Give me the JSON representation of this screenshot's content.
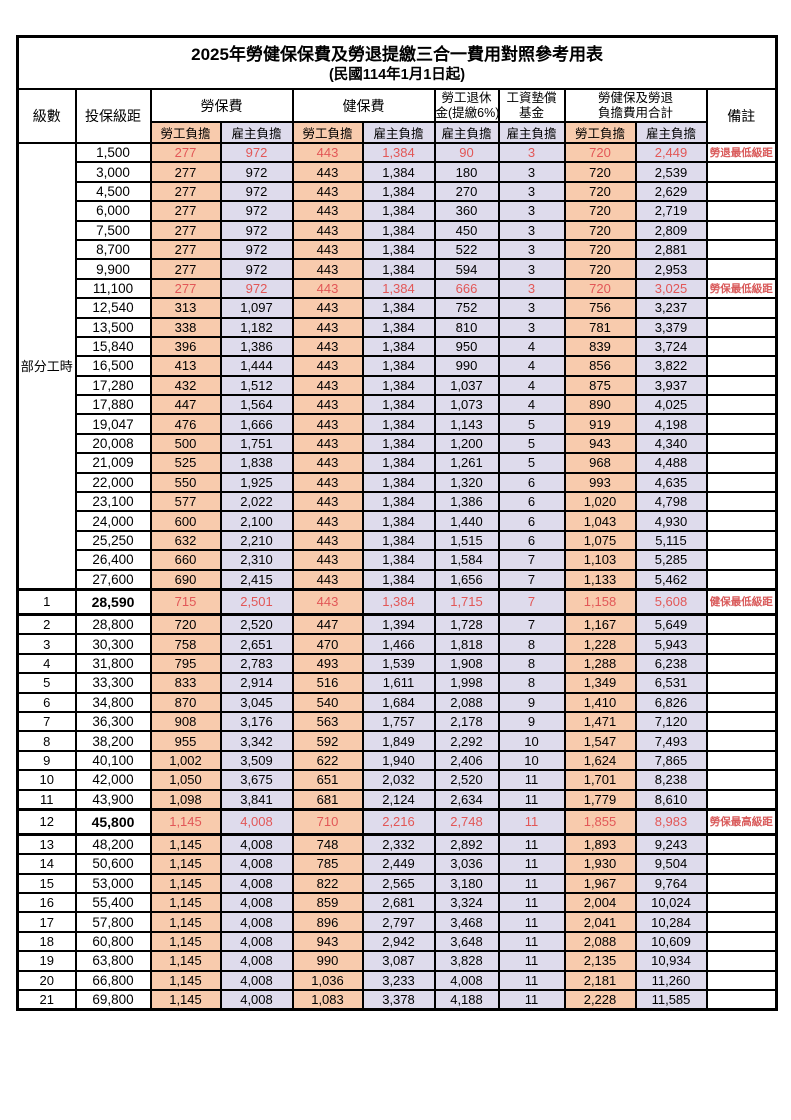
{
  "title": "2025年勞健保保費及勞退提繳三合一費用對照參考用表",
  "subtitle": "(民國114年1月1日起)",
  "part_time_label": "部分工時",
  "columns": {
    "level": "級數",
    "salary": "投保級距",
    "labor_ins": "勞保費",
    "health_ins": "健保費",
    "pension_line1": "勞工退休",
    "pension_line2": "金(提繳6%)",
    "wage_fund_line1": "工資墊償",
    "wage_fund_line2": "基金",
    "total_line1": "勞健保及勞退",
    "total_line2": "負擔費用合計",
    "remark": "備註",
    "employee": "勞工負擔",
    "employer": "雇主負擔"
  },
  "colors": {
    "employee_bg": "#F8CBAD",
    "employer_bg": "#DEDBEC",
    "highlight_red": "#E25757",
    "border": "#000000"
  },
  "rows": [
    {
      "level": "",
      "salary": "1,500",
      "values": [
        "277",
        "972",
        "443",
        "1,384",
        "90",
        "3",
        "720",
        "2,449"
      ],
      "remark": "勞退最低級距",
      "red": true,
      "heavy": false
    },
    {
      "level": "",
      "salary": "3,000",
      "values": [
        "277",
        "972",
        "443",
        "1,384",
        "180",
        "3",
        "720",
        "2,539"
      ],
      "remark": "",
      "red": false,
      "heavy": false
    },
    {
      "level": "",
      "salary": "4,500",
      "values": [
        "277",
        "972",
        "443",
        "1,384",
        "270",
        "3",
        "720",
        "2,629"
      ],
      "remark": "",
      "red": false,
      "heavy": false
    },
    {
      "level": "",
      "salary": "6,000",
      "values": [
        "277",
        "972",
        "443",
        "1,384",
        "360",
        "3",
        "720",
        "2,719"
      ],
      "remark": "",
      "red": false,
      "heavy": false
    },
    {
      "level": "",
      "salary": "7,500",
      "values": [
        "277",
        "972",
        "443",
        "1,384",
        "450",
        "3",
        "720",
        "2,809"
      ],
      "remark": "",
      "red": false,
      "heavy": false
    },
    {
      "level": "",
      "salary": "8,700",
      "values": [
        "277",
        "972",
        "443",
        "1,384",
        "522",
        "3",
        "720",
        "2,881"
      ],
      "remark": "",
      "red": false,
      "heavy": false
    },
    {
      "level": "",
      "salary": "9,900",
      "values": [
        "277",
        "972",
        "443",
        "1,384",
        "594",
        "3",
        "720",
        "2,953"
      ],
      "remark": "",
      "red": false,
      "heavy": false
    },
    {
      "level": "",
      "salary": "11,100",
      "values": [
        "277",
        "972",
        "443",
        "1,384",
        "666",
        "3",
        "720",
        "3,025"
      ],
      "remark": "勞保最低級距",
      "red": true,
      "heavy": false
    },
    {
      "level": "",
      "salary": "12,540",
      "values": [
        "313",
        "1,097",
        "443",
        "1,384",
        "752",
        "3",
        "756",
        "3,237"
      ],
      "remark": "",
      "red": false,
      "heavy": false
    },
    {
      "level": "",
      "salary": "13,500",
      "values": [
        "338",
        "1,182",
        "443",
        "1,384",
        "810",
        "3",
        "781",
        "3,379"
      ],
      "remark": "",
      "red": false,
      "heavy": false
    },
    {
      "level": "",
      "salary": "15,840",
      "values": [
        "396",
        "1,386",
        "443",
        "1,384",
        "950",
        "4",
        "839",
        "3,724"
      ],
      "remark": "",
      "red": false,
      "heavy": false
    },
    {
      "level": "",
      "salary": "16,500",
      "values": [
        "413",
        "1,444",
        "443",
        "1,384",
        "990",
        "4",
        "856",
        "3,822"
      ],
      "remark": "",
      "red": false,
      "heavy": false
    },
    {
      "level": "",
      "salary": "17,280",
      "values": [
        "432",
        "1,512",
        "443",
        "1,384",
        "1,037",
        "4",
        "875",
        "3,937"
      ],
      "remark": "",
      "red": false,
      "heavy": false
    },
    {
      "level": "",
      "salary": "17,880",
      "values": [
        "447",
        "1,564",
        "443",
        "1,384",
        "1,073",
        "4",
        "890",
        "4,025"
      ],
      "remark": "",
      "red": false,
      "heavy": false
    },
    {
      "level": "",
      "salary": "19,047",
      "values": [
        "476",
        "1,666",
        "443",
        "1,384",
        "1,143",
        "5",
        "919",
        "4,198"
      ],
      "remark": "",
      "red": false,
      "heavy": false
    },
    {
      "level": "",
      "salary": "20,008",
      "values": [
        "500",
        "1,751",
        "443",
        "1,384",
        "1,200",
        "5",
        "943",
        "4,340"
      ],
      "remark": "",
      "red": false,
      "heavy": false
    },
    {
      "level": "",
      "salary": "21,009",
      "values": [
        "525",
        "1,838",
        "443",
        "1,384",
        "1,261",
        "5",
        "968",
        "4,488"
      ],
      "remark": "",
      "red": false,
      "heavy": false
    },
    {
      "level": "",
      "salary": "22,000",
      "values": [
        "550",
        "1,925",
        "443",
        "1,384",
        "1,320",
        "6",
        "993",
        "4,635"
      ],
      "remark": "",
      "red": false,
      "heavy": false
    },
    {
      "level": "",
      "salary": "23,100",
      "values": [
        "577",
        "2,022",
        "443",
        "1,384",
        "1,386",
        "6",
        "1,020",
        "4,798"
      ],
      "remark": "",
      "red": false,
      "heavy": false
    },
    {
      "level": "",
      "salary": "24,000",
      "values": [
        "600",
        "2,100",
        "443",
        "1,384",
        "1,440",
        "6",
        "1,043",
        "4,930"
      ],
      "remark": "",
      "red": false,
      "heavy": false
    },
    {
      "level": "",
      "salary": "25,250",
      "values": [
        "632",
        "2,210",
        "443",
        "1,384",
        "1,515",
        "6",
        "1,075",
        "5,115"
      ],
      "remark": "",
      "red": false,
      "heavy": false
    },
    {
      "level": "",
      "salary": "26,400",
      "values": [
        "660",
        "2,310",
        "443",
        "1,384",
        "1,584",
        "7",
        "1,103",
        "5,285"
      ],
      "remark": "",
      "red": false,
      "heavy": false
    },
    {
      "level": "",
      "salary": "27,600",
      "values": [
        "690",
        "2,415",
        "443",
        "1,384",
        "1,656",
        "7",
        "1,133",
        "5,462"
      ],
      "remark": "",
      "red": false,
      "heavy": false
    },
    {
      "level": "1",
      "salary": "28,590",
      "values": [
        "715",
        "2,501",
        "443",
        "1,384",
        "1,715",
        "7",
        "1,158",
        "5,608"
      ],
      "remark": "健保最低級距",
      "red": true,
      "heavy": true
    },
    {
      "level": "2",
      "salary": "28,800",
      "values": [
        "720",
        "2,520",
        "447",
        "1,394",
        "1,728",
        "7",
        "1,167",
        "5,649"
      ],
      "remark": "",
      "red": false,
      "heavy": false
    },
    {
      "level": "3",
      "salary": "30,300",
      "values": [
        "758",
        "2,651",
        "470",
        "1,466",
        "1,818",
        "8",
        "1,228",
        "5,943"
      ],
      "remark": "",
      "red": false,
      "heavy": false
    },
    {
      "level": "4",
      "salary": "31,800",
      "values": [
        "795",
        "2,783",
        "493",
        "1,539",
        "1,908",
        "8",
        "1,288",
        "6,238"
      ],
      "remark": "",
      "red": false,
      "heavy": false
    },
    {
      "level": "5",
      "salary": "33,300",
      "values": [
        "833",
        "2,914",
        "516",
        "1,611",
        "1,998",
        "8",
        "1,349",
        "6,531"
      ],
      "remark": "",
      "red": false,
      "heavy": false
    },
    {
      "level": "6",
      "salary": "34,800",
      "values": [
        "870",
        "3,045",
        "540",
        "1,684",
        "2,088",
        "9",
        "1,410",
        "6,826"
      ],
      "remark": "",
      "red": false,
      "heavy": false
    },
    {
      "level": "7",
      "salary": "36,300",
      "values": [
        "908",
        "3,176",
        "563",
        "1,757",
        "2,178",
        "9",
        "1,471",
        "7,120"
      ],
      "remark": "",
      "red": false,
      "heavy": false
    },
    {
      "level": "8",
      "salary": "38,200",
      "values": [
        "955",
        "3,342",
        "592",
        "1,849",
        "2,292",
        "10",
        "1,547",
        "7,493"
      ],
      "remark": "",
      "red": false,
      "heavy": false
    },
    {
      "level": "9",
      "salary": "40,100",
      "values": [
        "1,002",
        "3,509",
        "622",
        "1,940",
        "2,406",
        "10",
        "1,624",
        "7,865"
      ],
      "remark": "",
      "red": false,
      "heavy": false
    },
    {
      "level": "10",
      "salary": "42,000",
      "values": [
        "1,050",
        "3,675",
        "651",
        "2,032",
        "2,520",
        "11",
        "1,701",
        "8,238"
      ],
      "remark": "",
      "red": false,
      "heavy": false
    },
    {
      "level": "11",
      "salary": "43,900",
      "values": [
        "1,098",
        "3,841",
        "681",
        "2,124",
        "2,634",
        "11",
        "1,779",
        "8,610"
      ],
      "remark": "",
      "red": false,
      "heavy": false
    },
    {
      "level": "12",
      "salary": "45,800",
      "values": [
        "1,145",
        "4,008",
        "710",
        "2,216",
        "2,748",
        "11",
        "1,855",
        "8,983"
      ],
      "remark": "勞保最高級距",
      "red": true,
      "heavy": true
    },
    {
      "level": "13",
      "salary": "48,200",
      "values": [
        "1,145",
        "4,008",
        "748",
        "2,332",
        "2,892",
        "11",
        "1,893",
        "9,243"
      ],
      "remark": "",
      "red": false,
      "heavy": false
    },
    {
      "level": "14",
      "salary": "50,600",
      "values": [
        "1,145",
        "4,008",
        "785",
        "2,449",
        "3,036",
        "11",
        "1,930",
        "9,504"
      ],
      "remark": "",
      "red": false,
      "heavy": false
    },
    {
      "level": "15",
      "salary": "53,000",
      "values": [
        "1,145",
        "4,008",
        "822",
        "2,565",
        "3,180",
        "11",
        "1,967",
        "9,764"
      ],
      "remark": "",
      "red": false,
      "heavy": false
    },
    {
      "level": "16",
      "salary": "55,400",
      "values": [
        "1,145",
        "4,008",
        "859",
        "2,681",
        "3,324",
        "11",
        "2,004",
        "10,024"
      ],
      "remark": "",
      "red": false,
      "heavy": false
    },
    {
      "level": "17",
      "salary": "57,800",
      "values": [
        "1,145",
        "4,008",
        "896",
        "2,797",
        "3,468",
        "11",
        "2,041",
        "10,284"
      ],
      "remark": "",
      "red": false,
      "heavy": false
    },
    {
      "level": "18",
      "salary": "60,800",
      "values": [
        "1,145",
        "4,008",
        "943",
        "2,942",
        "3,648",
        "11",
        "2,088",
        "10,609"
      ],
      "remark": "",
      "red": false,
      "heavy": false
    },
    {
      "level": "19",
      "salary": "63,800",
      "values": [
        "1,145",
        "4,008",
        "990",
        "3,087",
        "3,828",
        "11",
        "2,135",
        "10,934"
      ],
      "remark": "",
      "red": false,
      "heavy": false
    },
    {
      "level": "20",
      "salary": "66,800",
      "values": [
        "1,145",
        "4,008",
        "1,036",
        "3,233",
        "4,008",
        "11",
        "2,181",
        "11,260"
      ],
      "remark": "",
      "red": false,
      "heavy": false
    },
    {
      "level": "21",
      "salary": "69,800",
      "values": [
        "1,145",
        "4,008",
        "1,083",
        "3,378",
        "4,188",
        "11",
        "2,228",
        "11,585"
      ],
      "remark": "",
      "red": false,
      "heavy": false
    }
  ]
}
